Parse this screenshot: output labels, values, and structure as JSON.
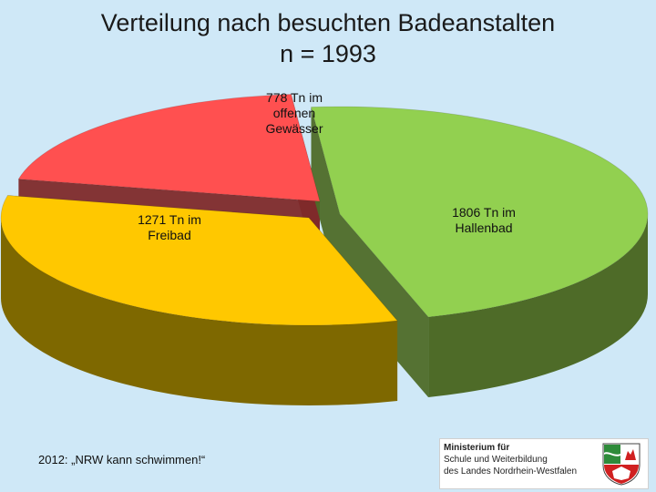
{
  "title": {
    "line1": "Verteilung nach besuchten Badeanstalten",
    "line2": "n = 1993"
  },
  "chart_data": {
    "type": "pie",
    "style": "3d-exploded",
    "slices": [
      {
        "id": "offen",
        "label_lines": [
          "778 Tn im",
          "offenen",
          "Gewässer"
        ],
        "value": 778,
        "color": "#ff5050",
        "side_color": "#7e2a2a"
      },
      {
        "id": "hallen",
        "label_lines": [
          "1806 Tn im",
          "Hallenbad"
        ],
        "value": 1806,
        "color": "#92d050",
        "side_color": "#4e6b28"
      },
      {
        "id": "frei",
        "label_lines": [
          "1271 Tn im",
          "Freibad"
        ],
        "value": 1271,
        "color": "#ffc800",
        "side_color": "#7e6800"
      }
    ]
  },
  "footer": {
    "note": "2012: „NRW kann schwimmen!“"
  },
  "logo": {
    "line1": "Ministerium für",
    "line2": "Schule und Weiterbildung",
    "line3": "des Landes Nordrhein-Westfalen"
  }
}
